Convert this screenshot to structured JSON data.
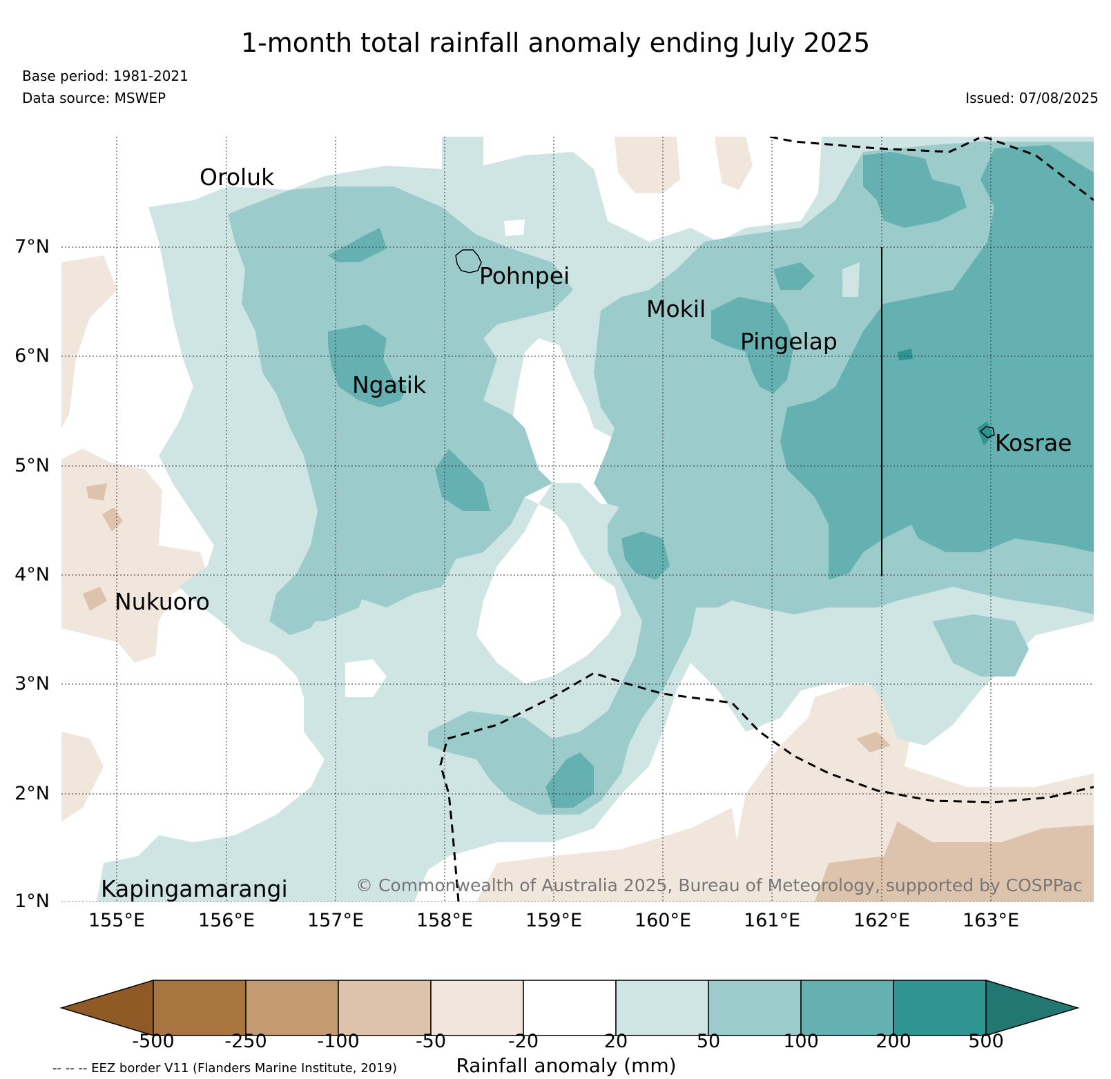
{
  "title": "1-month total rainfall anomaly ending July 2025",
  "base_period": "Base period: 1981-2021",
  "data_source": "Data source: MSWEP",
  "issued": "Issued: 07/08/2025",
  "lat_labels": [
    "7°N",
    "6°N",
    "5°N",
    "4°N",
    "3°N",
    "2°N",
    "1°N"
  ],
  "lon_labels": [
    "155°E",
    "156°E",
    "157°E",
    "158°E",
    "159°E",
    "160°E",
    "161°E",
    "162°E",
    "163°E"
  ],
  "places": {
    "oroluk": "Oroluk",
    "pohnpei": "Pohnpei",
    "mokil": "Mokil",
    "pingelap": "Pingelap",
    "ngatik": "Ngatik",
    "kosrae": "Kosrae",
    "nukuoro": "Nukuoro",
    "kapingamarangi": "Kapingamarangi"
  },
  "copyright": "© Commonwealth of Australia 2025, Bureau of Meteorology, supported by COSPPac",
  "colorbar": {
    "label": "Rainfall anomaly (mm)",
    "ticks": [
      "-500",
      "-250",
      "-100",
      "-50",
      "-20",
      "20",
      "50",
      "100",
      "200",
      "500"
    ],
    "colors": [
      "#8f5a26",
      "#a87440",
      "#c49a72",
      "#ddc3ab",
      "#f0e6dc",
      "#ffffff",
      "#cfe5e4",
      "#9ccbcb",
      "#65b0b0",
      "#2f9593",
      "#227773"
    ]
  },
  "eez_note": "-- -- -- EEZ border V11 (Flanders Marine Institute, 2019)"
}
